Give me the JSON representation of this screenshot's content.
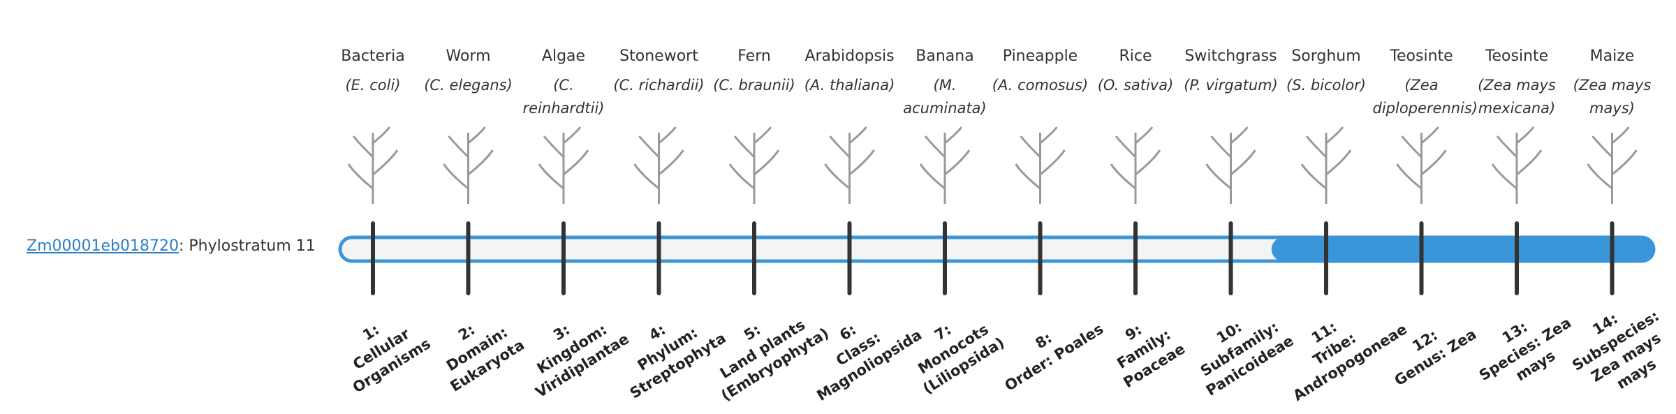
{
  "gene": {
    "id": "Zm00001eb018720",
    "label": ": Phylostratum 11"
  },
  "organisms": [
    {
      "name": "Bacteria",
      "species": "(E. coli)"
    },
    {
      "name": "Worm",
      "species": "(C. elegans)"
    },
    {
      "name": "Algae",
      "species": "(C. reinhardtii)"
    },
    {
      "name": "Stonewort",
      "species": "(C. richardii)"
    },
    {
      "name": "Fern",
      "species": "(C. braunii)"
    },
    {
      "name": "Arabidopsis",
      "species": "(A. thaliana)"
    },
    {
      "name": "Banana",
      "species": "(M. acuminata)"
    },
    {
      "name": "Pineapple",
      "species": "(A. comosus)"
    },
    {
      "name": "Rice",
      "species": "(O. sativa)"
    },
    {
      "name": "Switchgrass",
      "species": "(P. virgatum)"
    },
    {
      "name": "Sorghum",
      "species": "(S. bicolor)"
    },
    {
      "name": "Teosinte",
      "species": "(Zea diploperennis)"
    },
    {
      "name": "Teosinte",
      "species": "(Zea mays mexicana)"
    },
    {
      "name": "Maize",
      "species": "(Zea mays mays)"
    }
  ],
  "strata": [
    {
      "number": "1:",
      "name": "Cellular Organisms"
    },
    {
      "number": "2:",
      "name": "Domain: Eukaryota"
    },
    {
      "number": "3:",
      "name": "Kingdom: Viridiplantae"
    },
    {
      "number": "4:",
      "name": "Phylum: Streptophyta"
    },
    {
      "number": "5:",
      "name": "Land plants (Embryophyta)"
    },
    {
      "number": "6:",
      "name": "Class: Magnoliopsida"
    },
    {
      "number": "7:",
      "name": "Monocots (Liliopsida)"
    },
    {
      "number": "8:",
      "name": "Order: Poales"
    },
    {
      "number": "9:",
      "name": "Family: Poaceae"
    },
    {
      "number": "10:",
      "name": "Subfamily: Panicoideae"
    },
    {
      "number": "11:",
      "name": "Tribe: Andropogoneae"
    },
    {
      "number": "12:",
      "name": "Genus: Zea"
    },
    {
      "number": "13:",
      "name": "Species: Zea mays"
    },
    {
      "number": "14:",
      "name": "Subspecies: Zea mays mays"
    }
  ]
}
